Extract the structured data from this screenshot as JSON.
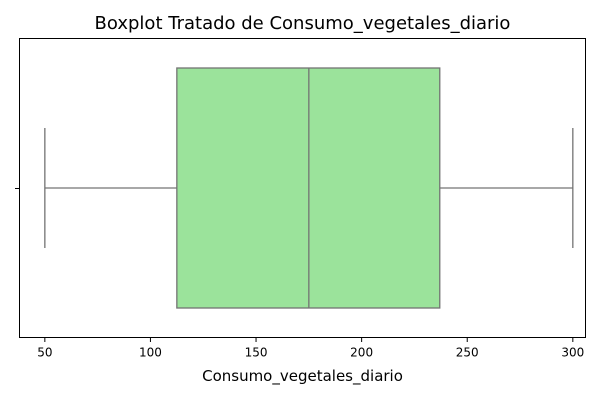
{
  "chart_data": {
    "type": "boxplot",
    "title": "Boxplot Tratado de Consumo_vegetales_diario",
    "xlabel": "Consumo_vegetales_diario",
    "ylabel": "",
    "xlim": [
      38,
      306
    ],
    "xticks": [
      50,
      100,
      150,
      200,
      250,
      300
    ],
    "grid": false,
    "orientation": "horizontal",
    "box": {
      "min": 50,
      "q1": 112.5,
      "median": 175,
      "q3": 237,
      "max": 300
    },
    "colors": {
      "box_fill": "#9be39b",
      "line": "#737373",
      "axes": "#000000"
    }
  }
}
